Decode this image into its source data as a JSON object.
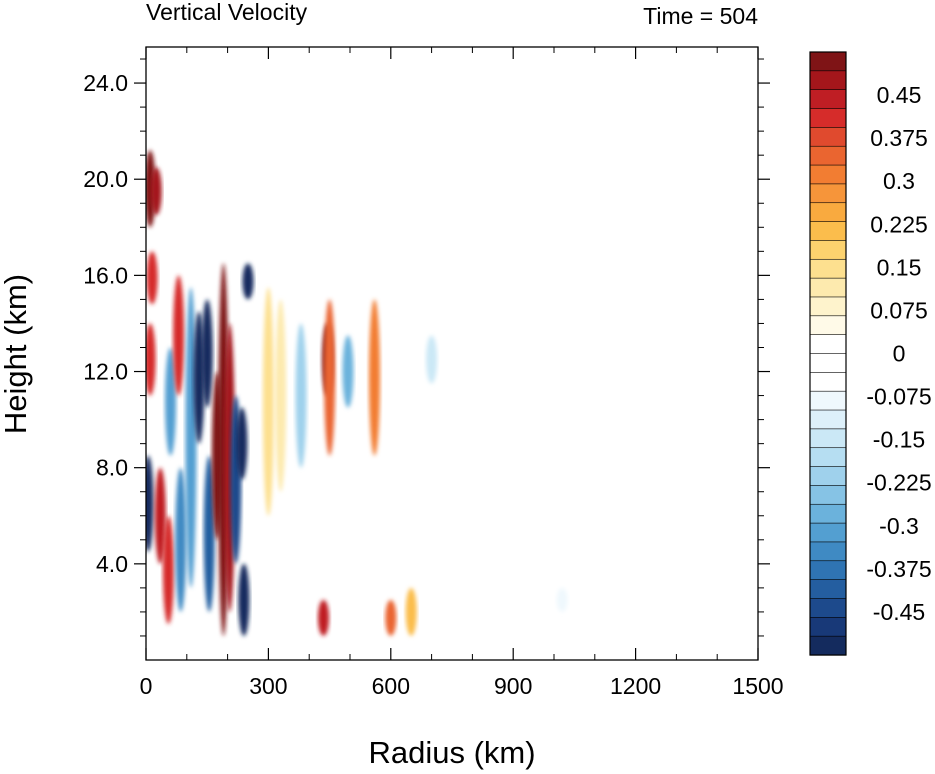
{
  "chart_data": {
    "type": "heatmap",
    "title": "Vertical Velocity",
    "time_label": "Time = 504",
    "xlabel": "Radius (km)",
    "ylabel": "Height (km)",
    "xlim": [
      0,
      1500
    ],
    "ylim": [
      0,
      25.5
    ],
    "x_ticks": [
      0,
      300,
      600,
      900,
      1200,
      1500
    ],
    "x_tick_labels": [
      "0",
      "300",
      "600",
      "900",
      "1200",
      "1500"
    ],
    "y_ticks": [
      4,
      8,
      12,
      16,
      20,
      24
    ],
    "y_tick_labels": [
      "4.0",
      "8.0",
      "12.0",
      "16.0",
      "20.0",
      "24.0"
    ],
    "colorbar": {
      "labels": [
        "0.45",
        "0.375",
        "0.3",
        "0.225",
        "0.15",
        "0.075",
        "0",
        "-0.075",
        "-0.15",
        "-0.225",
        "-0.3",
        "-0.375",
        "-0.45"
      ],
      "label_values": [
        0.45,
        0.375,
        0.3,
        0.225,
        0.15,
        0.075,
        0,
        -0.075,
        -0.15,
        -0.225,
        -0.3,
        -0.375,
        -0.45
      ],
      "range": [
        -0.525,
        0.525
      ],
      "colors_high_to_low": [
        "#7f1416",
        "#a4161b",
        "#bf1e24",
        "#d62c2a",
        "#e04a2e",
        "#ea6530",
        "#f27d32",
        "#f6953a",
        "#f9aa3f",
        "#fbbd4c",
        "#fcd26e",
        "#fde08f",
        "#fdeaae",
        "#fef3cc",
        "#fffae8",
        "#ffffff",
        "#ffffff",
        "#ffffff",
        "#eff8fd",
        "#ddf0fa",
        "#cbe8f6",
        "#b6def2",
        "#9fd1ec",
        "#86c3e5",
        "#6bb2dc",
        "#539fd1",
        "#3f8ac3",
        "#2f74b3",
        "#245ea0",
        "#1d4a8c",
        "#183978",
        "#142b5e"
      ]
    },
    "features": [
      {
        "r": 10,
        "z0": 18,
        "z1": 21.2,
        "w": 0.5
      },
      {
        "r": 25,
        "z0": 18.5,
        "z1": 20.5,
        "w": 0.48
      },
      {
        "r": 15,
        "z0": 14.8,
        "z1": 17,
        "w": 0.4
      },
      {
        "r": 10,
        "z0": 11,
        "z1": 14,
        "w": 0.4
      },
      {
        "r": 5,
        "z0": 4.5,
        "z1": 8.5,
        "w": -0.5
      },
      {
        "r": 35,
        "z0": 4,
        "z1": 8,
        "w": 0.45
      },
      {
        "r": 55,
        "z0": 1.5,
        "z1": 6,
        "w": 0.4
      },
      {
        "r": 60,
        "z0": 8.5,
        "z1": 13,
        "w": -0.3
      },
      {
        "r": 80,
        "z0": 11,
        "z1": 16,
        "w": 0.4
      },
      {
        "r": 85,
        "z0": 2,
        "z1": 8,
        "w": -0.35
      },
      {
        "r": 110,
        "z0": 3,
        "z1": 15.5,
        "w": -0.3
      },
      {
        "r": 130,
        "z0": 9,
        "z1": 14.5,
        "w": -0.52
      },
      {
        "r": 150,
        "z0": 10.5,
        "z1": 15,
        "w": -0.52
      },
      {
        "r": 155,
        "z0": 2,
        "z1": 8.5,
        "w": -0.4
      },
      {
        "r": 175,
        "z0": 5,
        "z1": 12,
        "w": 0.5
      },
      {
        "r": 190,
        "z0": 1,
        "z1": 16.5,
        "w": 0.5
      },
      {
        "r": 205,
        "z0": 2,
        "z1": 14,
        "w": 0.48
      },
      {
        "r": 220,
        "z0": 4,
        "z1": 11,
        "w": -0.45
      },
      {
        "r": 235,
        "z0": 7.5,
        "z1": 10.5,
        "w": -0.52
      },
      {
        "r": 240,
        "z0": 1,
        "z1": 4,
        "w": -0.52
      },
      {
        "r": 250,
        "z0": 15,
        "z1": 16.5,
        "w": -0.52
      },
      {
        "r": 300,
        "z0": 6,
        "z1": 15.5,
        "w": 0.15
      },
      {
        "r": 330,
        "z0": 7,
        "z1": 15,
        "w": 0.12
      },
      {
        "r": 380,
        "z0": 8,
        "z1": 14,
        "w": -0.2
      },
      {
        "r": 445,
        "z0": 11,
        "z1": 14,
        "w": 0.5
      },
      {
        "r": 450,
        "z0": 8.5,
        "z1": 15,
        "w": 0.35
      },
      {
        "r": 495,
        "z0": 10.5,
        "z1": 13.5,
        "w": -0.28
      },
      {
        "r": 560,
        "z0": 8.5,
        "z1": 15,
        "w": 0.3
      },
      {
        "r": 600,
        "z0": 1,
        "z1": 2.5,
        "w": 0.35
      },
      {
        "r": 700,
        "z0": 11.5,
        "z1": 13.5,
        "w": -0.15
      },
      {
        "r": 435,
        "z0": 1,
        "z1": 2.5,
        "w": 0.45
      },
      {
        "r": 650,
        "z0": 1,
        "z1": 3,
        "w": 0.2
      },
      {
        "r": 1020,
        "z0": 2,
        "z1": 3,
        "w": -0.08
      }
    ]
  }
}
